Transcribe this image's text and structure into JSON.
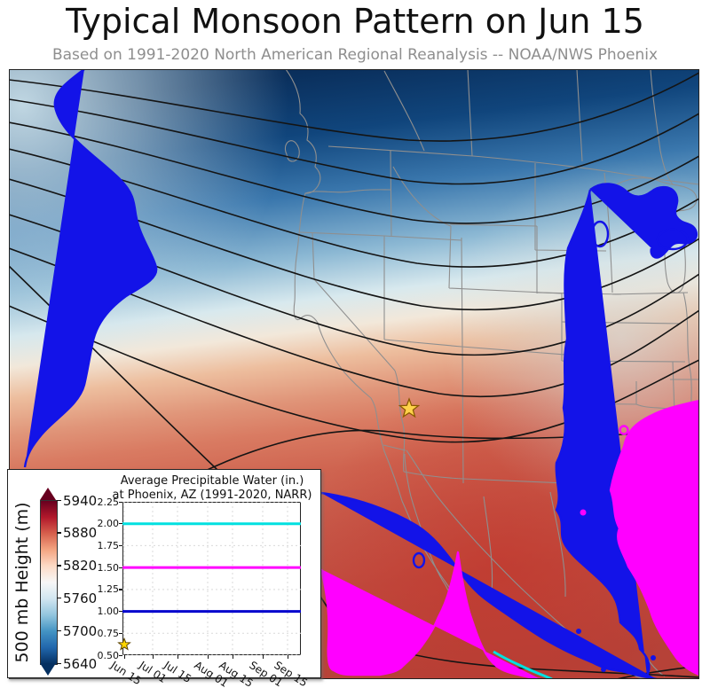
{
  "title": "Typical Monsoon Pattern on Jun 15",
  "subtitle": "Based on 1991-2020 North American Regional Reanalysis -- NOAA/NWS Phoenix",
  "map": {
    "star_city": "Phoenix",
    "star_color": "#FFD24A",
    "contour_colors": {
      "height_contours": "#141414",
      "boundaries": "#8f8f8f",
      "pw_blue": "#1313e8",
      "pw_magenta": "#ff00ff",
      "pw_cyan": "#00e0e0"
    }
  },
  "colorbar": {
    "label": "500 mb Height (m)",
    "ticks": [
      "5940",
      "5880",
      "5820",
      "5760",
      "5700",
      "5640"
    ],
    "gradient": [
      "#67001f",
      "#b2182b",
      "#d6604d",
      "#f4a582",
      "#fddbc7",
      "#f7f7f7",
      "#d1e5f0",
      "#92c5de",
      "#4393c3",
      "#2166ac",
      "#053061"
    ]
  },
  "chart_data": {
    "type": "line",
    "title_line1": "Average Precipitable Water (in.)",
    "title_line2": "at Phoenix, AZ (1991-2020, NARR)",
    "x_tick_labels": [
      "Jun 15",
      "Jul 01",
      "Jul 15",
      "Aug 01",
      "Aug 15",
      "Sep 01",
      "Sep 15"
    ],
    "y_tick_labels": [
      "2.25",
      "2.00",
      "1.75",
      "1.50",
      "1.25",
      "1.00",
      "0.75",
      "0.50"
    ],
    "y_tick_values": [
      2.25,
      2.0,
      1.75,
      1.5,
      1.25,
      1.0,
      0.75,
      0.5
    ],
    "ylim": [
      0.5,
      2.25
    ],
    "grid": true,
    "reference_lines": [
      {
        "value": 2.0,
        "color": "#00e0e0"
      },
      {
        "value": 1.5,
        "color": "#ff00ff"
      },
      {
        "value": 1.0,
        "color": "#0000cd"
      }
    ],
    "marker": {
      "x_label": "Jun 15",
      "value": 0.62,
      "symbol": "star",
      "color": "#ffd700"
    }
  }
}
